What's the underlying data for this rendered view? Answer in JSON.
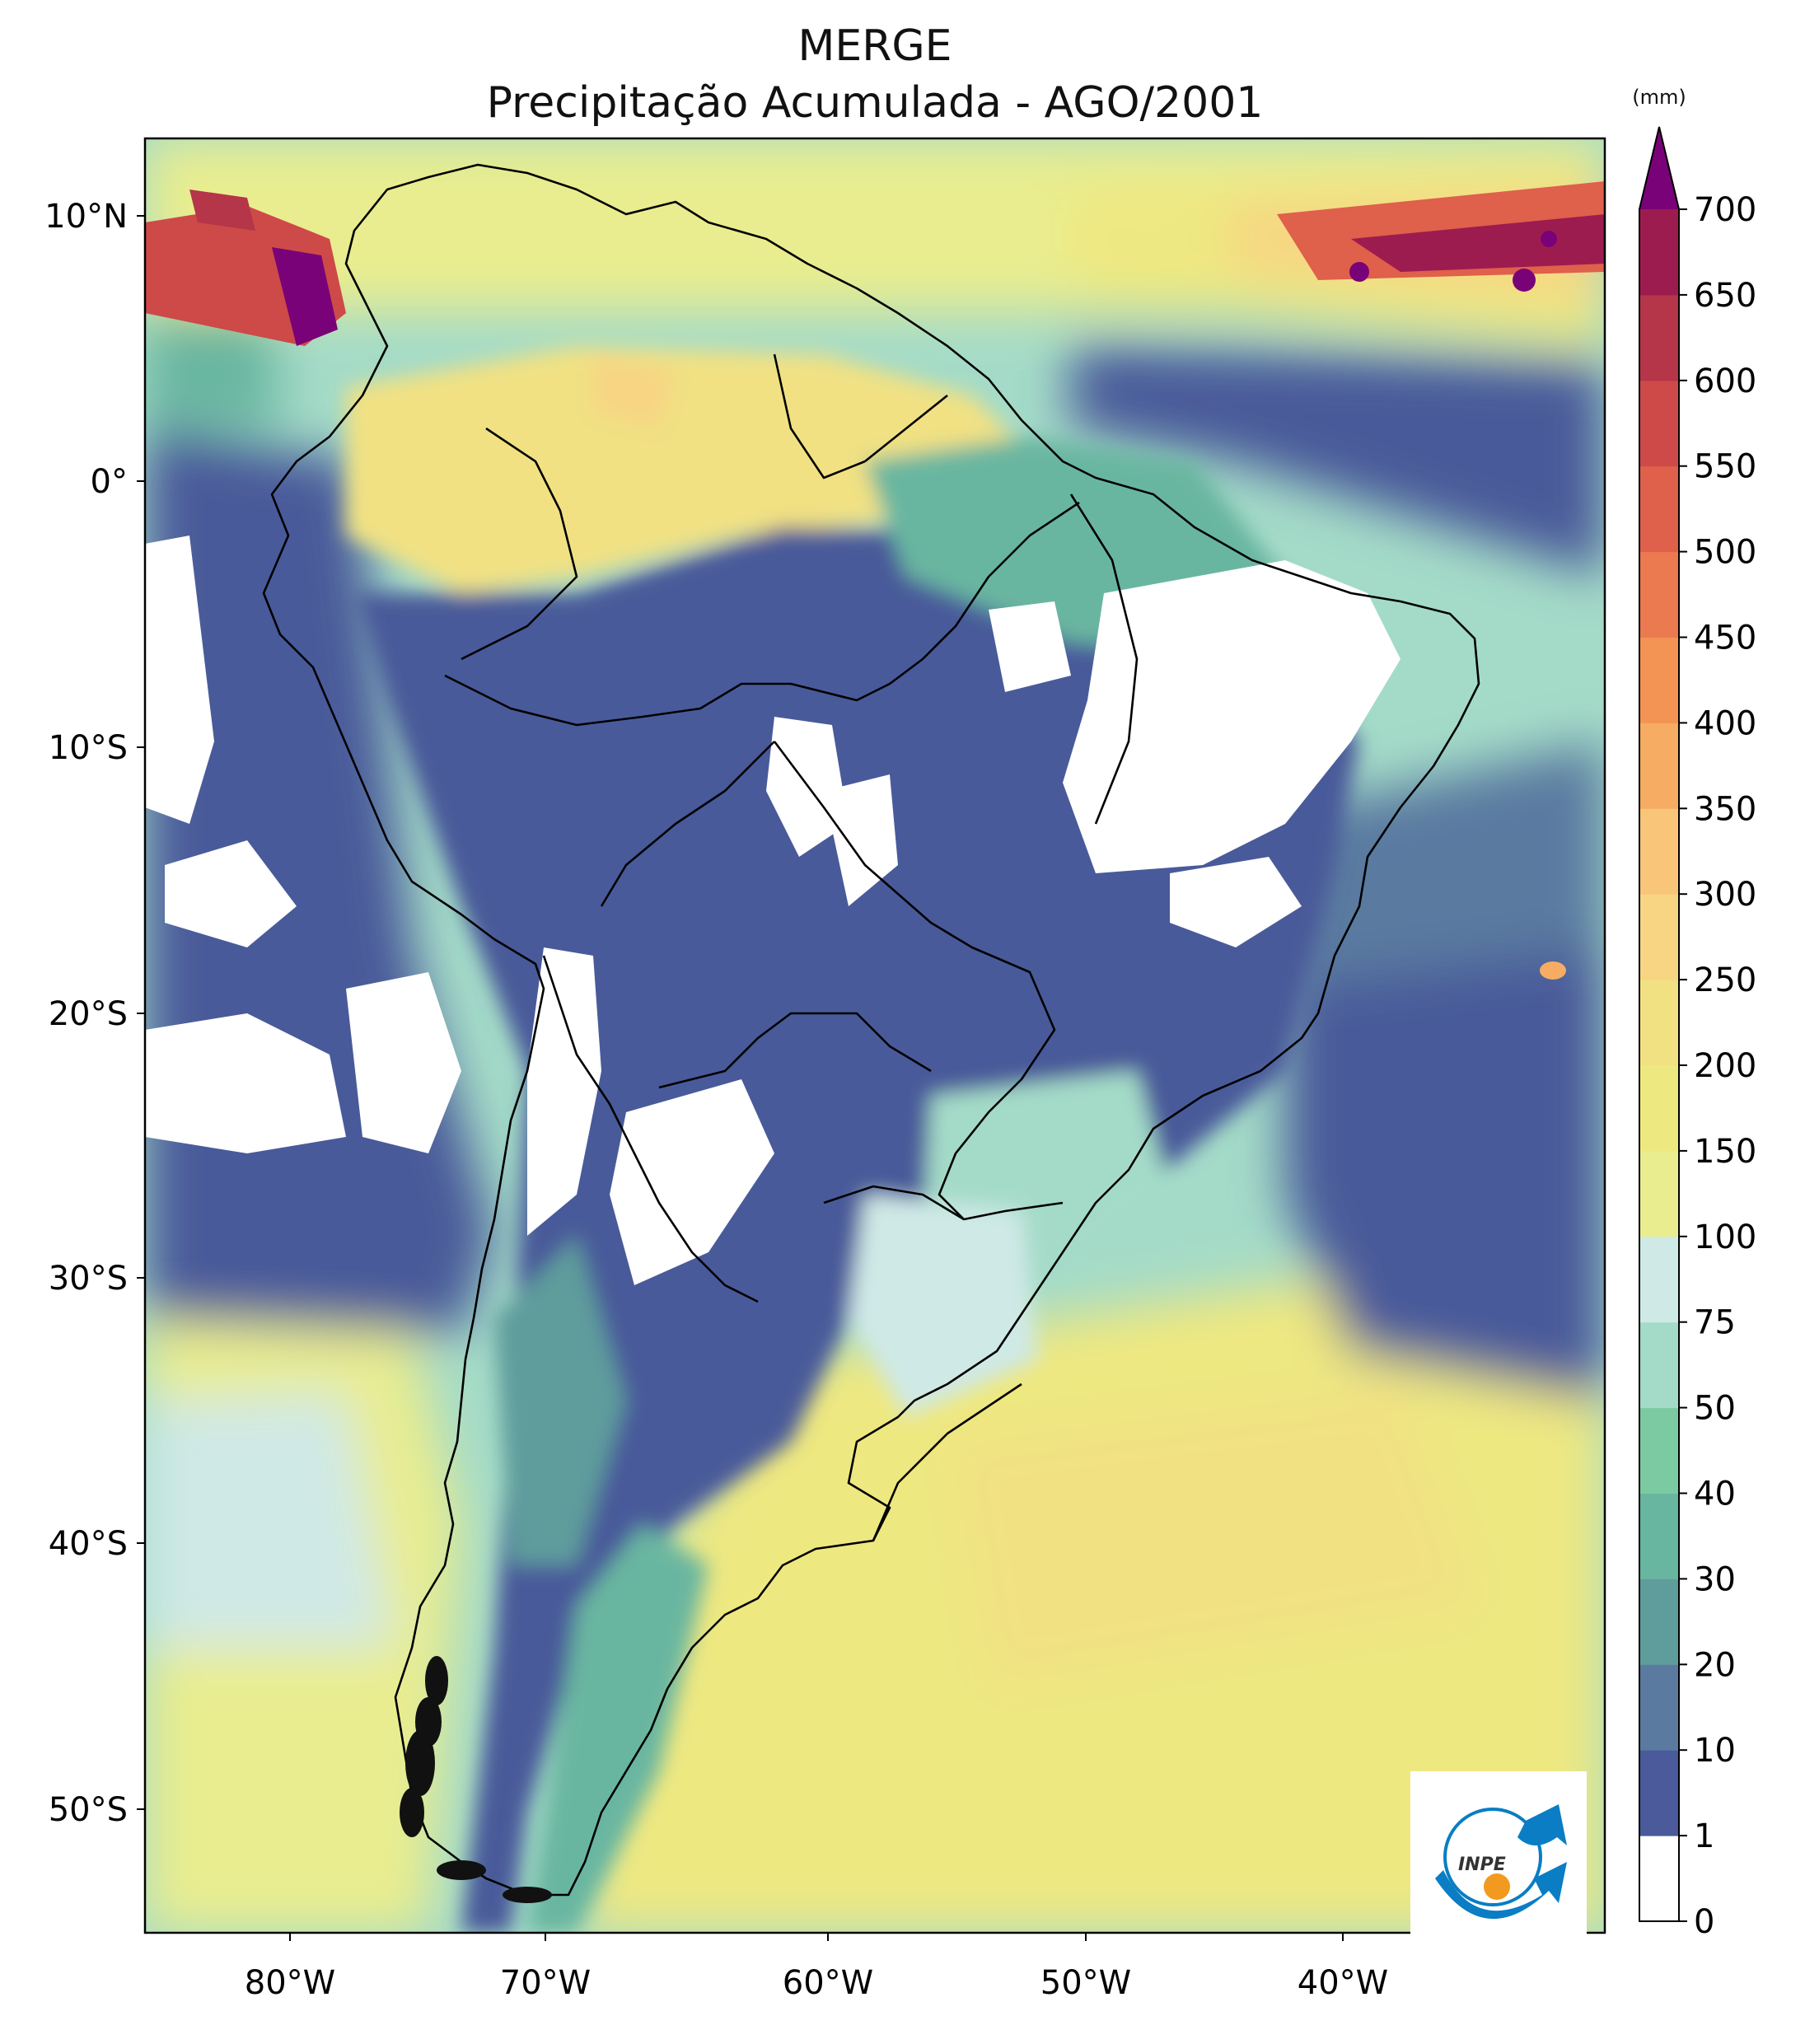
{
  "title": "MERGE",
  "subtitle": "Precipitação Acumulada - AGO/2001",
  "colorbar": {
    "unit": "(mm)",
    "levels": [
      "0",
      "1",
      "10",
      "20",
      "30",
      "40",
      "50",
      "75",
      "100",
      "150",
      "200",
      "250",
      "300",
      "350",
      "400",
      "450",
      "500",
      "550",
      "600",
      "650",
      "700"
    ],
    "colors": [
      "#ffffff",
      "#4a5a9a",
      "#5a7aa0",
      "#5f9c9c",
      "#69b6a0",
      "#7ccaa2",
      "#a4dbc8",
      "#cfe9e6",
      "#e9ed8f",
      "#eee881",
      "#f1e183",
      "#f7d583",
      "#f9c679",
      "#f6ac62",
      "#f39455",
      "#eb7a50",
      "#df604b",
      "#cd4a49",
      "#b53549",
      "#9d1c4f",
      "#7a0278"
    ],
    "extend": "max"
  },
  "axes": {
    "lon_ticks": [
      "80°W",
      "70°W",
      "60°W",
      "50°W",
      "40°W"
    ],
    "lat_ticks": [
      "10°N",
      "0°",
      "10°S",
      "20°S",
      "30°S",
      "40°S",
      "50°S"
    ]
  },
  "logo": {
    "text": "INPE"
  }
}
